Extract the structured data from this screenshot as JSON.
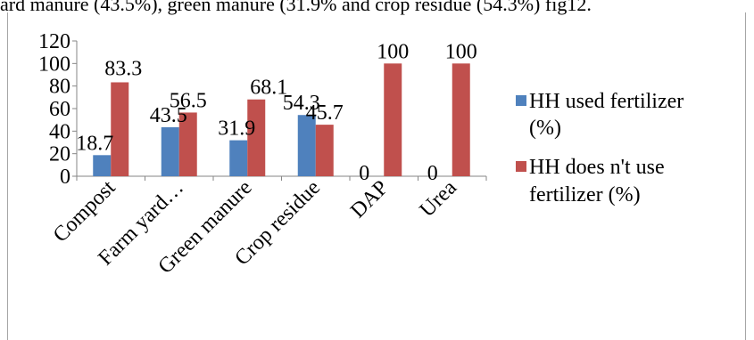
{
  "document": {
    "top_text": "ard manure (43.5%), green manure (31.9% and crop residue (54.3%) fig12."
  },
  "chart_data": {
    "type": "bar",
    "categories": [
      "Compost",
      "Farm yard…",
      "Green manure",
      "Crop residue",
      "DAP",
      "Urea"
    ],
    "series": [
      {
        "name": "HH used fertilizer (%)",
        "legend_lines": [
          "HH used fertilizer",
          "(%)"
        ],
        "color": "#4f81bd",
        "values": [
          18.7,
          43.5,
          31.9,
          54.3,
          0,
          0
        ],
        "labels": [
          "18.7",
          "43.5",
          "31.9",
          "54.3",
          "0",
          "0"
        ]
      },
      {
        "name": "HH does n't use fertilizer (%)",
        "legend_lines": [
          "HH does n't use",
          "fertilizer (%)"
        ],
        "color": "#c0504d",
        "values": [
          83.3,
          56.5,
          68.1,
          45.7,
          100,
          100
        ],
        "labels": [
          "83.3",
          "56.5",
          "68.1",
          "45.7",
          "100",
          "100"
        ]
      }
    ],
    "ylim": [
      0,
      120
    ],
    "yticks": [
      0,
      20,
      40,
      60,
      80,
      100,
      120
    ],
    "ytick_labels": [
      "0",
      "20",
      "40",
      "60",
      "80",
      "100",
      "120"
    ],
    "grid": false,
    "legend_position": "right",
    "title": "",
    "xlabel": "",
    "ylabel": ""
  }
}
